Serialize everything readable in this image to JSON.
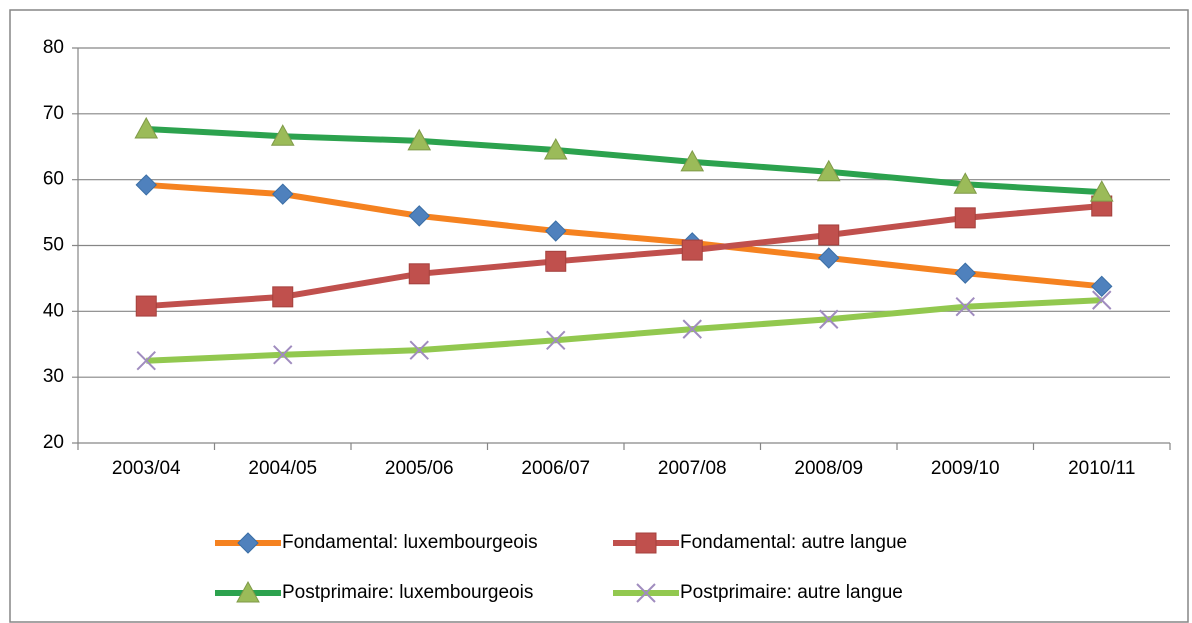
{
  "chart_data": {
    "type": "line",
    "categories": [
      "2003/04",
      "2004/05",
      "2005/06",
      "2006/07",
      "2007/08",
      "2008/09",
      "2009/10",
      "2010/11"
    ],
    "series": [
      {
        "name": "Fondamental: luxembourgeois",
        "color": "#f58220",
        "marker": "diamond",
        "marker_color": "#4f81bd",
        "values": [
          59.2,
          57.8,
          54.5,
          52.2,
          50.4,
          48.1,
          45.8,
          43.8
        ]
      },
      {
        "name": "Fondamental: autre langue",
        "color": "#c0504d",
        "marker": "square",
        "marker_color": "#c0504d",
        "values": [
          40.8,
          42.2,
          45.7,
          47.6,
          49.3,
          51.6,
          54.2,
          56.0
        ]
      },
      {
        "name": "Postprimaire: luxembourgeois",
        "color": "#2ca24e",
        "marker": "triangle",
        "marker_color": "#9bbb59",
        "values": [
          67.7,
          66.6,
          65.9,
          64.5,
          62.7,
          61.2,
          59.3,
          58.1
        ]
      },
      {
        "name": "Postprimaire: autre langue",
        "color": "#92c84f",
        "marker": "x",
        "marker_color": "#a08cbf",
        "values": [
          32.5,
          33.4,
          34.1,
          35.6,
          37.3,
          38.8,
          40.7,
          41.7
        ]
      }
    ],
    "ylim": [
      20,
      80
    ],
    "yticks": [
      20,
      30,
      40,
      50,
      60,
      70,
      80
    ],
    "grid": true,
    "legend": "bottom"
  }
}
